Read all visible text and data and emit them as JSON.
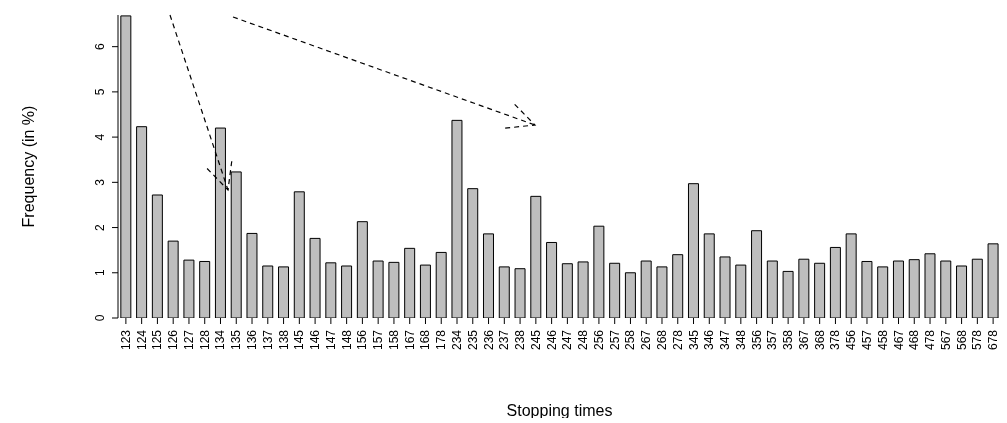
{
  "chart_data": {
    "type": "bar",
    "xlabel": "Stopping times",
    "ylabel": "Frequency (in %)",
    "categories": [
      "123",
      "124",
      "125",
      "126",
      "127",
      "128",
      "134",
      "135",
      "136",
      "137",
      "138",
      "145",
      "146",
      "147",
      "148",
      "156",
      "157",
      "158",
      "167",
      "168",
      "178",
      "234",
      "235",
      "236",
      "237",
      "238",
      "245",
      "246",
      "247",
      "248",
      "256",
      "257",
      "258",
      "267",
      "268",
      "278",
      "345",
      "346",
      "347",
      "348",
      "356",
      "357",
      "358",
      "367",
      "368",
      "378",
      "456",
      "457",
      "458",
      "467",
      "468",
      "478",
      "567",
      "568",
      "578",
      "678"
    ],
    "values": [
      6.68,
      4.23,
      2.72,
      1.7,
      1.28,
      1.25,
      4.2,
      3.23,
      1.87,
      1.15,
      1.13,
      2.79,
      1.76,
      1.22,
      1.15,
      2.13,
      1.26,
      1.23,
      1.54,
      1.17,
      1.45,
      4.37,
      2.86,
      1.86,
      1.13,
      1.09,
      2.69,
      1.67,
      1.2,
      1.24,
      2.03,
      1.21,
      1.0,
      1.26,
      1.13,
      1.4,
      2.97,
      1.86,
      1.35,
      1.17,
      1.93,
      1.26,
      1.03,
      1.3,
      1.21,
      1.56,
      1.86,
      1.25,
      1.13,
      1.26,
      1.29,
      1.42,
      1.26,
      1.15,
      1.3,
      1.64
    ],
    "color": "#bebebe",
    "ylim": [
      0,
      6.7
    ],
    "yticks": [
      0,
      1,
      2,
      3,
      4,
      5,
      6
    ],
    "grid": false,
    "legend": false
  }
}
